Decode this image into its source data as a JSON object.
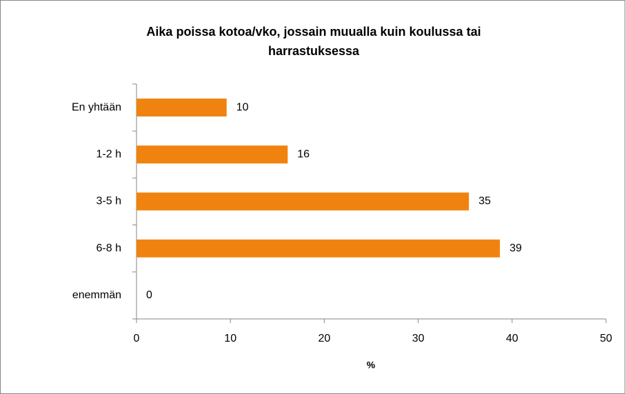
{
  "chart_data": {
    "type": "bar",
    "orientation": "horizontal",
    "title": "Aika poissa kotoa/vko, jossain muualla kuin koulussa tai harrastuksessa",
    "categories": [
      "En yhtään",
      "1-2 h",
      "3-5 h",
      "6-8 h",
      "enemmän"
    ],
    "values": [
      9.6,
      16.1,
      35.4,
      38.7,
      0
    ],
    "value_labels": [
      "10",
      "16",
      "35",
      "39",
      "0"
    ],
    "color": "#f0830f",
    "xlabel": "%",
    "xlim": [
      0,
      50
    ],
    "xticks": [
      0,
      10,
      20,
      30,
      40,
      50
    ],
    "grid": false
  }
}
